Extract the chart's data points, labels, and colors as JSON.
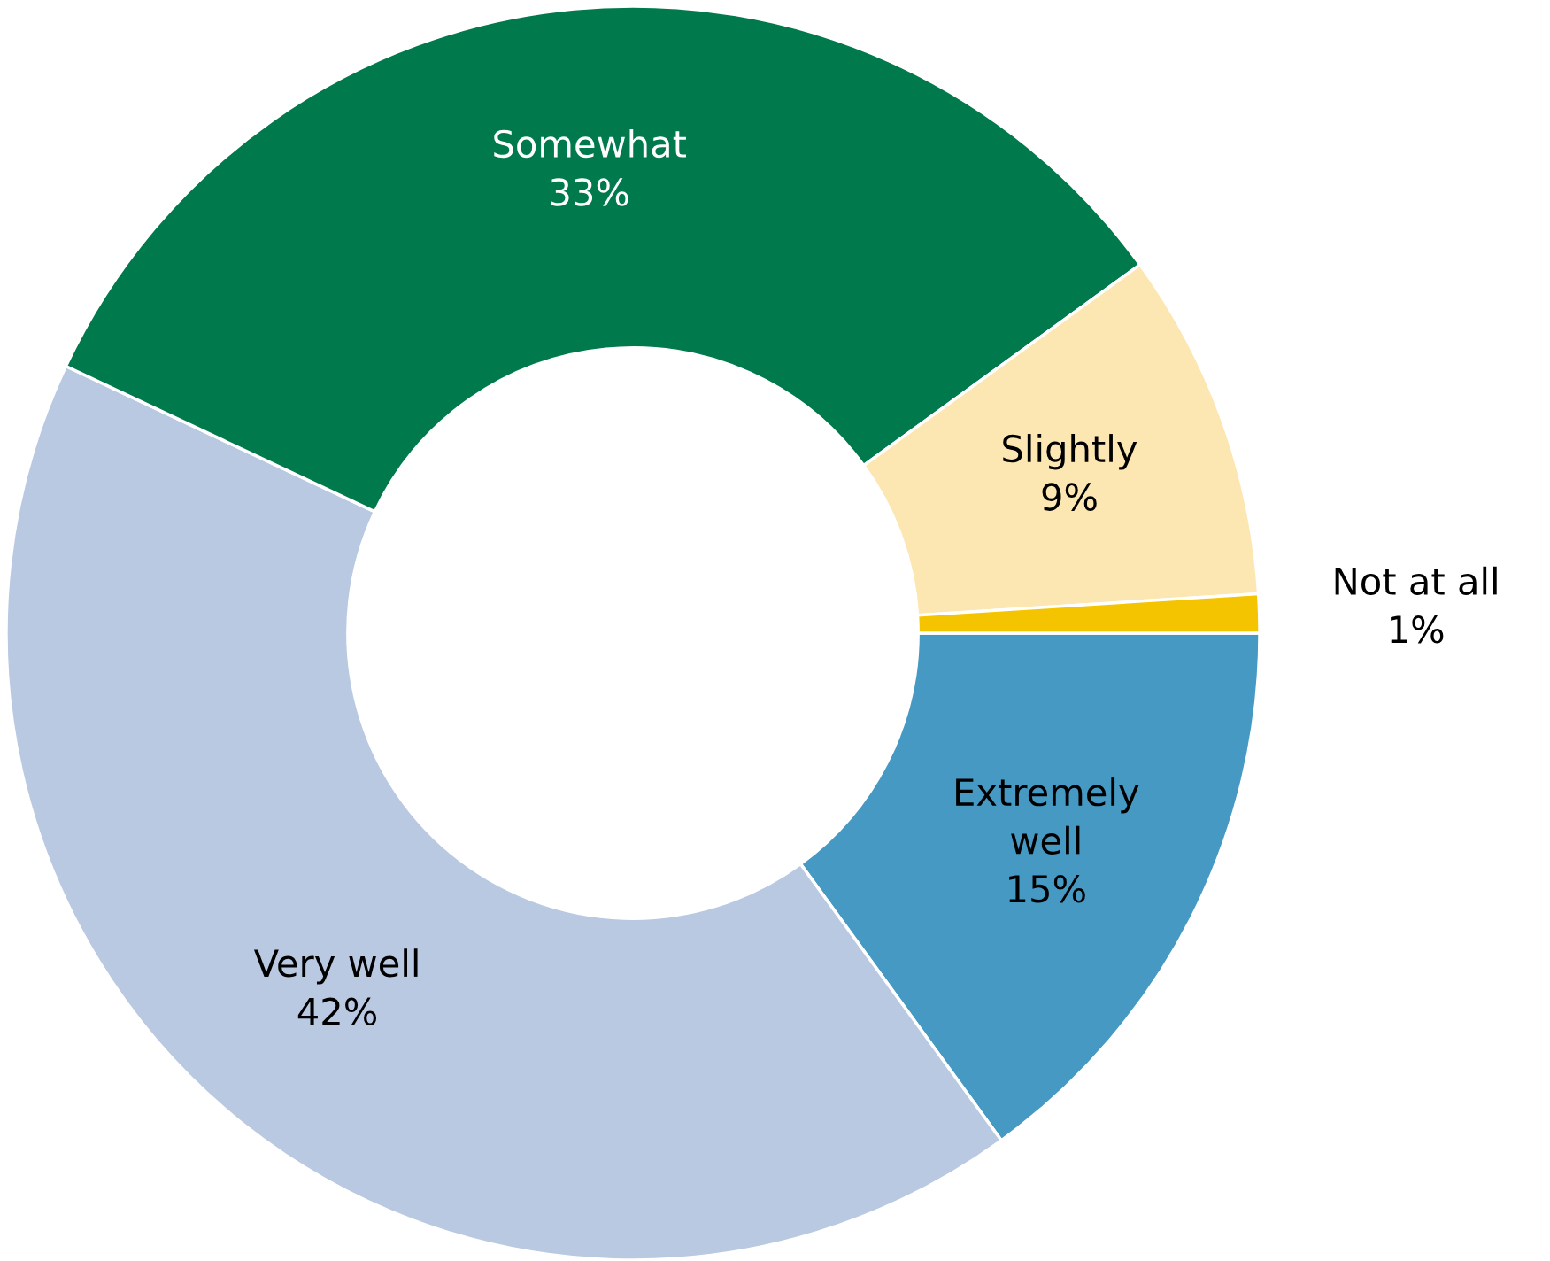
{
  "chart_data": {
    "type": "donut",
    "categories": [
      "Extremely well",
      "Very well",
      "Somewhat",
      "Slightly",
      "Not at all"
    ],
    "values": [
      15,
      42,
      33,
      9,
      1
    ],
    "colors": [
      "#4599c3",
      "#b9c9e1",
      "#007a4d",
      "#fce7b2",
      "#f5c400"
    ],
    "value_labels": [
      "15%",
      "42%",
      "33%",
      "9%",
      "1%"
    ]
  }
}
